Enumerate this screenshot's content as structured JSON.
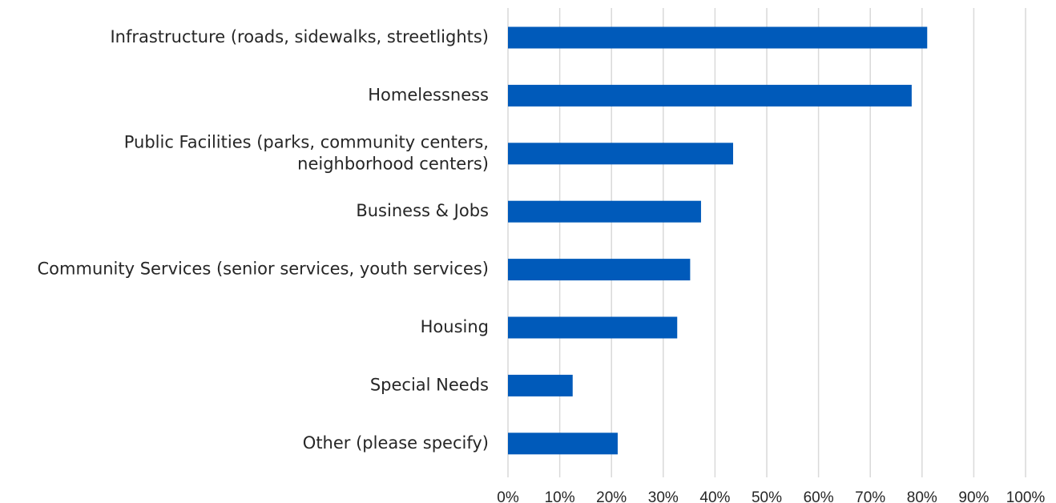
{
  "chart_data": {
    "type": "bar",
    "orientation": "horizontal",
    "title": "",
    "xlabel": "",
    "ylabel": "",
    "categories": [
      "Infrastructure (roads, sidewalks, streetlights)",
      "Homelessness",
      "Public Facilities (parks, community centers, neighborhood centers)",
      "Business & Jobs",
      "Community Services (senior services, youth services)",
      "Housing",
      "Special Needs",
      "Other (please specify)"
    ],
    "category_lines": [
      [
        "Infrastructure (roads, sidewalks, streetlights)"
      ],
      [
        "Homelessness"
      ],
      [
        "Public Facilities (parks, community centers,",
        "neighborhood centers)"
      ],
      [
        "Business & Jobs"
      ],
      [
        "Community Services (senior services, youth services)"
      ],
      [
        "Housing"
      ],
      [
        "Special Needs"
      ],
      [
        "Other (please specify)"
      ]
    ],
    "values": [
      0.81,
      0.78,
      0.435,
      0.373,
      0.352,
      0.327,
      0.125,
      0.212
    ],
    "xlim": [
      0,
      1
    ],
    "xticks": [
      0,
      0.1,
      0.2,
      0.3,
      0.4,
      0.5,
      0.6,
      0.7,
      0.8,
      0.9,
      1.0
    ],
    "xtick_labels": [
      "0%",
      "10%",
      "20%",
      "30%",
      "40%",
      "50%",
      "60%",
      "70%",
      "80%",
      "90%",
      "100%"
    ],
    "grid": "vertical",
    "legend": "none",
    "bar_color": "#005ABA",
    "grid_color": "#D9D9D9",
    "text_color": "#262626"
  }
}
